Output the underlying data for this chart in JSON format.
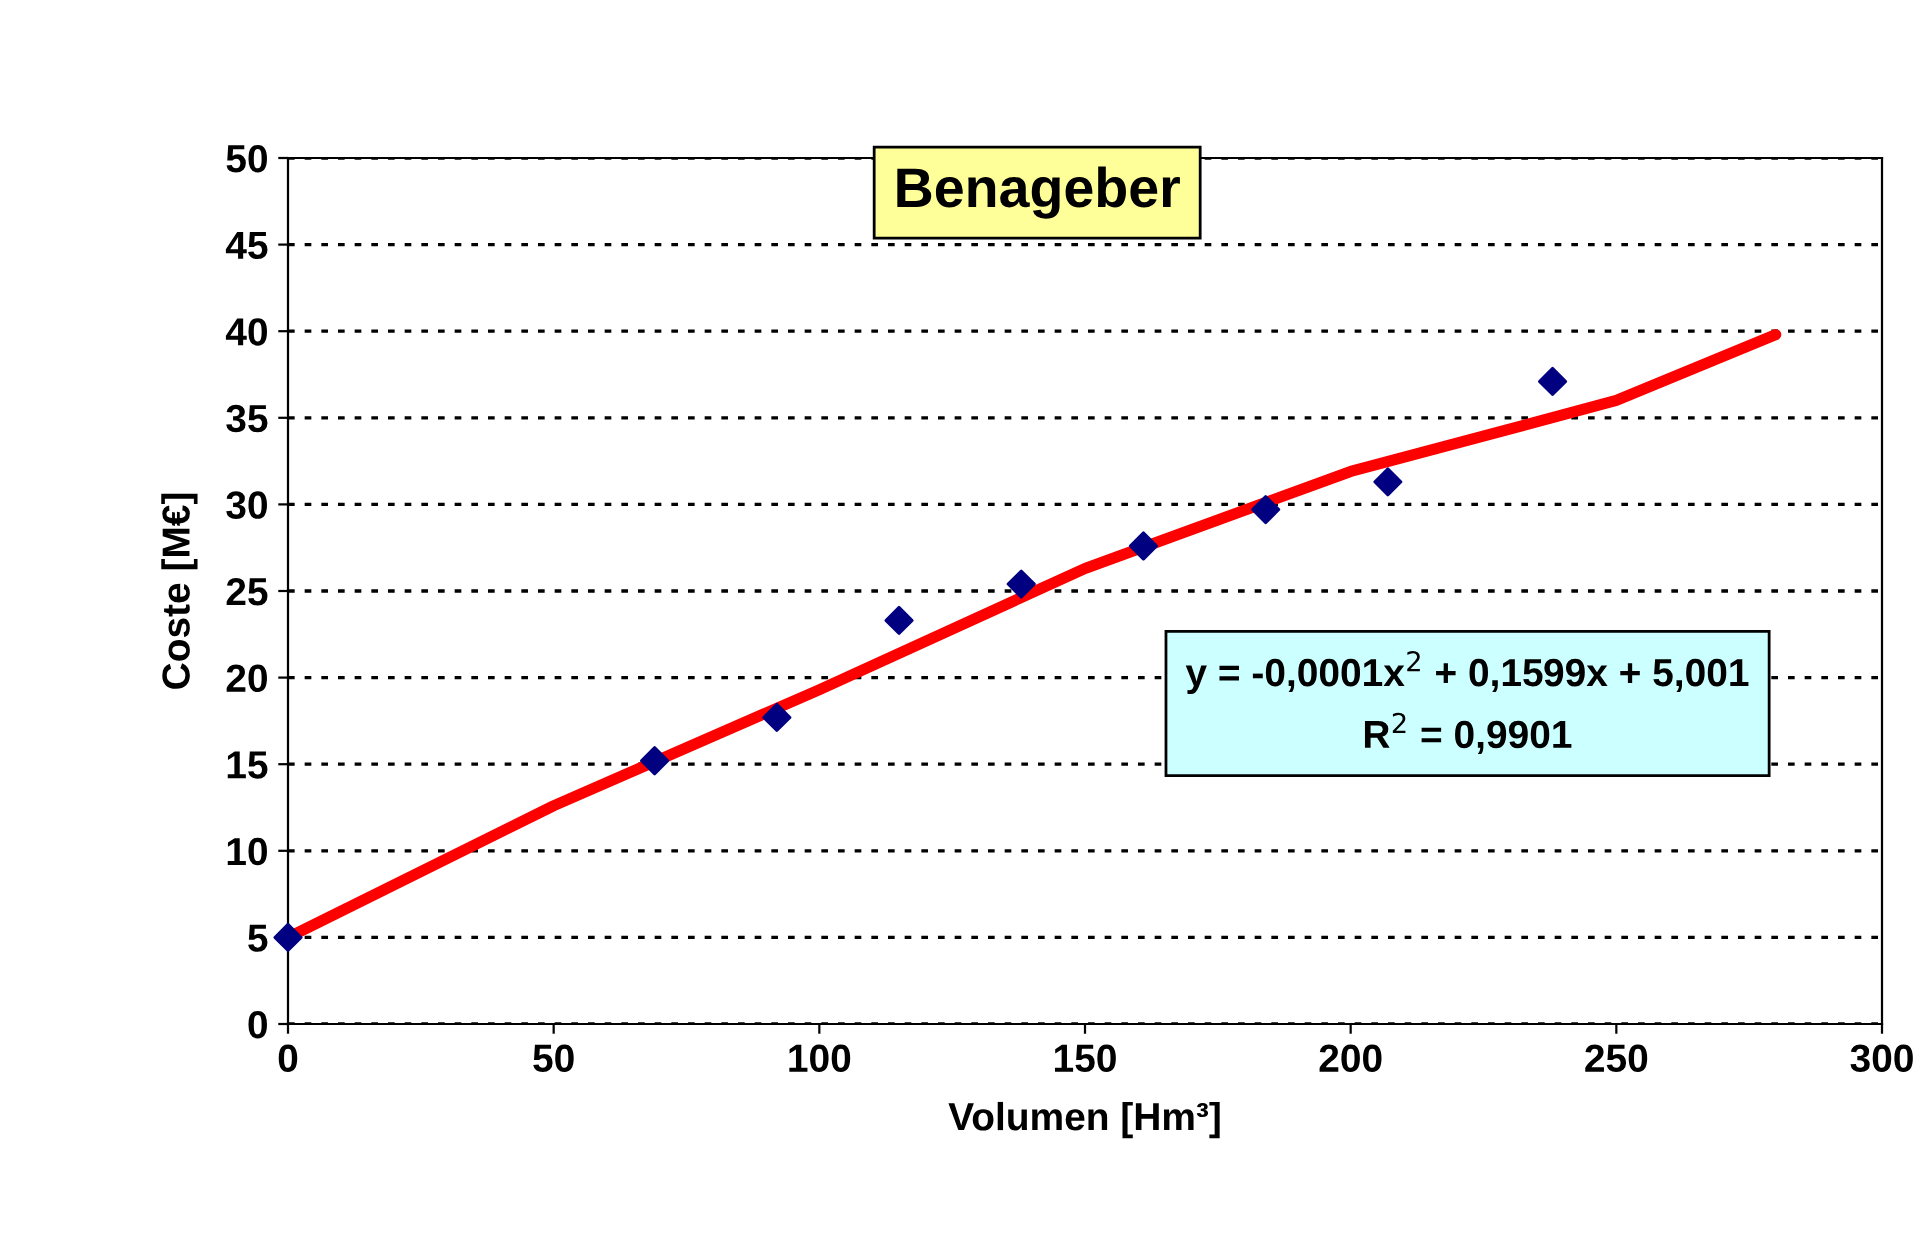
{
  "chart_data": {
    "type": "scatter",
    "title": "Benageber",
    "xlabel": "Volumen [Hm³]",
    "ylabel": "Coste [M€]",
    "series": [
      {
        "color": "#000080",
        "marker": "diamond",
        "x": [
          0,
          69,
          92,
          115,
          138,
          161,
          184,
          207,
          238
        ],
        "values": [
          5,
          15.2,
          17.7,
          23.3,
          25.4,
          27.6,
          29.7,
          31.3,
          37.1
        ]
      },
      {
        "type": "line",
        "color": "#ff0000",
        "marker": "none",
        "line_style": "solid",
        "x": [
          0,
          50,
          100,
          150,
          200,
          250,
          280
        ],
        "values": [
          5,
          12.6,
          19.3,
          26.3,
          31.9,
          36,
          39.8
        ]
      }
    ],
    "annotations": [
      "y = -0,0001x$^{2}$ + 0,1599x + 5,001",
      "R$^{2}$ = 0,9901"
    ],
    "xlim": [
      0,
      300
    ],
    "xticks": [
      0,
      50,
      100,
      150,
      200,
      250,
      300
    ],
    "ylim": [
      0,
      50
    ],
    "yticks": [
      0,
      5,
      10,
      15,
      20,
      25,
      30,
      35,
      40,
      45,
      50
    ],
    "grid": "y",
    "legend": false
  }
}
